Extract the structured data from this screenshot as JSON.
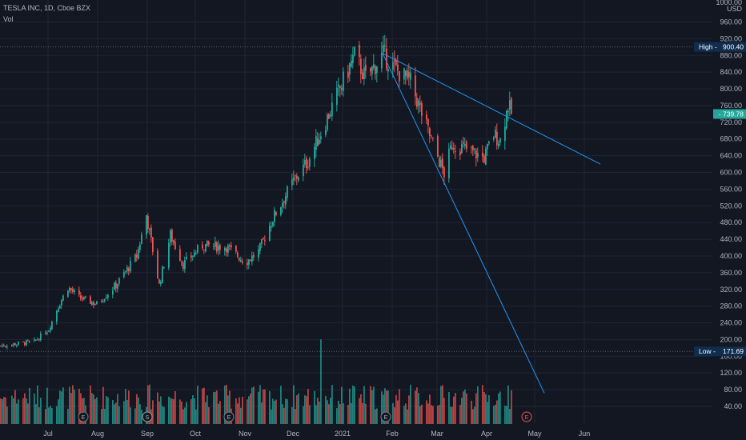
{
  "header": {
    "symbol_line": "TESLA INC, 1D, Cboe BZX",
    "volume_label": "Vol",
    "currency": "USD"
  },
  "price_axis": {
    "top_label": "1000.00",
    "ticks": [
      "960.00",
      "920.00",
      "880.00",
      "840.00",
      "800.00",
      "760.00",
      "720.00",
      "680.00",
      "640.00",
      "600.00",
      "560.00",
      "520.00",
      "480.00",
      "440.00",
      "400.00",
      "360.00",
      "320.00",
      "280.00",
      "240.00",
      "200.00",
      "160.00",
      "120.00",
      "80.00",
      "40.00"
    ]
  },
  "time_axis": {
    "labels": [
      "Jul",
      "Aug",
      "Sep",
      "Oct",
      "Nov",
      "Dec",
      "2021",
      "Feb",
      "Mar",
      "Apr",
      "May",
      "Jun"
    ]
  },
  "badges": {
    "high_label": "High",
    "high_value": "900.40",
    "low_label": "Low",
    "low_value": "171.69",
    "last_value": "739.78"
  },
  "event_markers": [
    {
      "label": "E",
      "kind": "earnings"
    },
    {
      "label": "S",
      "kind": "split"
    },
    {
      "label": "E",
      "kind": "earnings"
    },
    {
      "label": "E",
      "kind": "earnings"
    },
    {
      "label": "E",
      "kind": "earnings"
    }
  ],
  "colors": {
    "background": "#131722",
    "grid": "#1f2432",
    "up": "#26a69a",
    "down": "#ef5350",
    "trendline": "#2196f3",
    "badge_high": "#0f2d4f",
    "badge_last": "#26a69a",
    "axis_text": "#b2b5be"
  },
  "chart_data": {
    "type": "candlestick",
    "title": "TESLA INC, 1D, Cboe BZX",
    "ylabel": "USD",
    "ylim": [
      40,
      1000
    ],
    "x_range": [
      "2020-06-01",
      "2021-06-10"
    ],
    "high": 900.4,
    "low": 171.69,
    "last": 739.78,
    "price_anchors": [
      [
        "2020-06-01",
        185
      ],
      [
        "2020-06-22",
        195
      ],
      [
        "2020-07-01",
        225
      ],
      [
        "2020-07-07",
        280
      ],
      [
        "2020-07-13",
        325
      ],
      [
        "2020-07-20",
        300
      ],
      [
        "2020-07-31",
        285
      ],
      [
        "2020-08-12",
        330
      ],
      [
        "2020-08-25",
        400
      ],
      [
        "2020-08-31",
        498
      ],
      [
        "2020-09-08",
        330
      ],
      [
        "2020-09-15",
        450
      ],
      [
        "2020-09-23",
        380
      ],
      [
        "2020-10-05",
        425
      ],
      [
        "2020-10-20",
        422
      ],
      [
        "2020-11-01",
        385
      ],
      [
        "2020-11-09",
        410
      ],
      [
        "2020-11-18",
        490
      ],
      [
        "2020-12-01",
        580
      ],
      [
        "2020-12-10",
        627
      ],
      [
        "2020-12-18",
        695
      ],
      [
        "2021-01-08",
        880
      ],
      [
        "2021-01-15",
        826
      ],
      [
        "2021-01-26",
        883
      ],
      [
        "2021-02-03",
        845
      ],
      [
        "2021-02-12",
        816
      ],
      [
        "2021-02-23",
        698
      ],
      [
        "2021-03-05",
        597
      ],
      [
        "2021-03-10",
        668
      ],
      [
        "2021-03-19",
        655
      ],
      [
        "2021-03-30",
        635
      ],
      [
        "2021-04-05",
        691
      ],
      [
        "2021-04-09",
        677
      ],
      [
        "2021-04-14",
        762
      ],
      [
        "2021-04-16",
        739.78
      ]
    ],
    "volume_ylim": [
      0,
      300
    ],
    "volume_note": "Volume pane, large spike near 2020-12-18",
    "trendlines": [
      {
        "from": [
          "2021-01-26",
          885
        ],
        "to": [
          "2021-06-11",
          620
        ]
      },
      {
        "from": [
          "2021-01-26",
          885
        ],
        "to": [
          "2021-05-07",
          72
        ]
      }
    ]
  }
}
